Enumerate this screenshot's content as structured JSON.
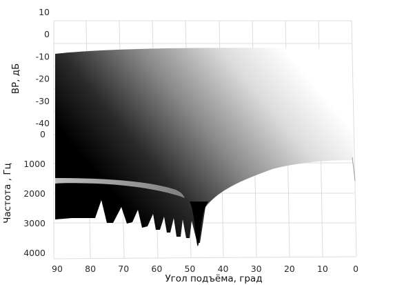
{
  "chart_data": {
    "type": "surface",
    "view": "3d-perspective",
    "colormap": "gray",
    "grid": true,
    "x_axis": {
      "label": "Угол подъёма, град",
      "range": [
        90,
        0
      ],
      "ticks": [
        "90",
        "80",
        "70",
        "60",
        "50",
        "40",
        "30",
        "20",
        "10",
        "0"
      ]
    },
    "y_axis": {
      "label": "Частота , Гц",
      "range": [
        0,
        4000
      ],
      "ticks": [
        "0",
        "1000",
        "2000",
        "3000",
        "4000"
      ]
    },
    "z_axis": {
      "label": "ВР, дБ",
      "range": [
        -40,
        10
      ],
      "ticks": [
        "10",
        "0",
        "-10",
        "-20",
        "-30",
        "-40"
      ]
    },
    "lobe_minima_deg": [
      76,
      68,
      62,
      57,
      53,
      50,
      48
    ],
    "main_notch_deg": 48
  }
}
